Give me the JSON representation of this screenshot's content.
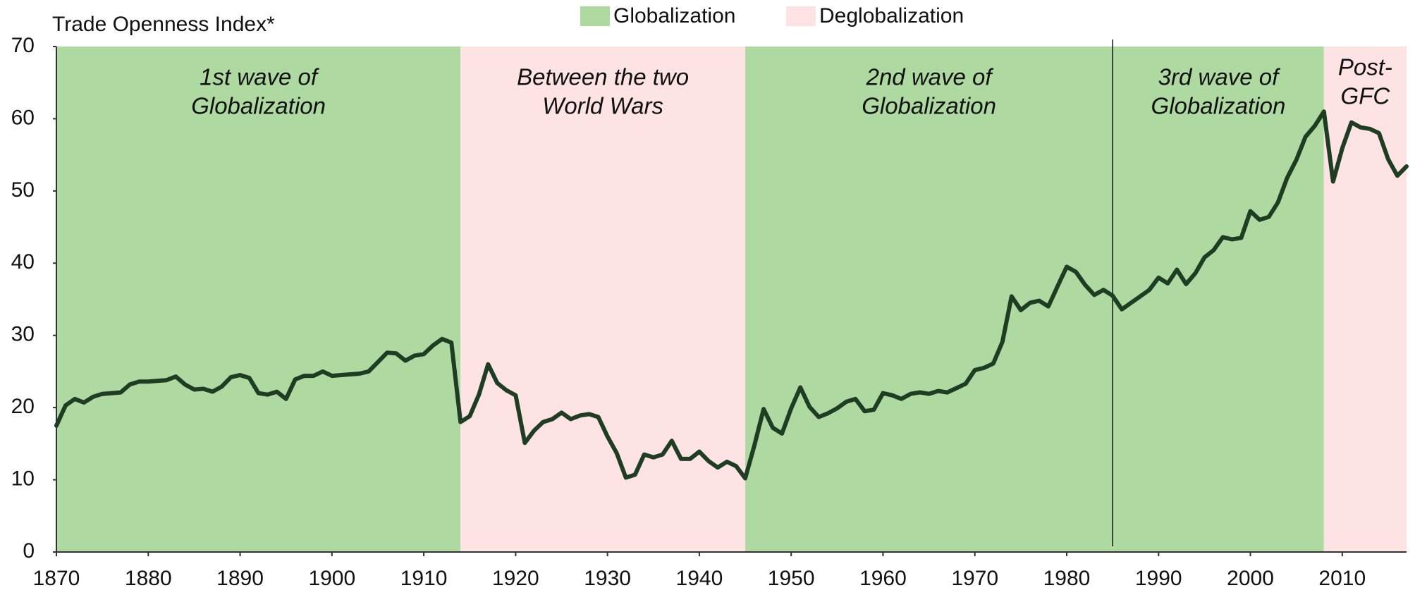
{
  "chart_data": {
    "type": "line",
    "title": "Trade Openness Index*",
    "legend": [
      {
        "name": "Globalization",
        "color": "#aed9a0"
      },
      {
        "name": "Deglobalization",
        "color": "#fde3e3"
      }
    ],
    "regions": [
      {
        "from": 1870,
        "to": 1914,
        "shade": 0,
        "label": [
          "1st wave of",
          "Globalization"
        ]
      },
      {
        "from": 1914,
        "to": 1945,
        "shade": 1,
        "label": [
          "Between the two",
          "World Wars"
        ]
      },
      {
        "from": 1945,
        "to": 1985,
        "shade": 0,
        "label": [
          "2nd wave of",
          "Globalization"
        ]
      },
      {
        "from": 1985,
        "to": 2008,
        "shade": 0,
        "label": [
          "3rd wave of",
          "Globalization"
        ]
      },
      {
        "from": 2008,
        "to": 2017,
        "shade": 1,
        "label": [
          "Post-",
          "GFC"
        ]
      }
    ],
    "x": [
      1870,
      1871,
      1872,
      1873,
      1874,
      1875,
      1876,
      1877,
      1878,
      1879,
      1880,
      1881,
      1882,
      1883,
      1884,
      1885,
      1886,
      1887,
      1888,
      1889,
      1890,
      1891,
      1892,
      1893,
      1894,
      1895,
      1896,
      1897,
      1898,
      1899,
      1900,
      1901,
      1902,
      1903,
      1904,
      1905,
      1906,
      1907,
      1908,
      1909,
      1910,
      1911,
      1912,
      1913,
      1914,
      1915,
      1916,
      1917,
      1918,
      1919,
      1920,
      1921,
      1922,
      1923,
      1924,
      1925,
      1926,
      1927,
      1928,
      1929,
      1930,
      1931,
      1932,
      1933,
      1934,
      1935,
      1936,
      1937,
      1938,
      1939,
      1940,
      1941,
      1942,
      1943,
      1944,
      1945,
      1946,
      1947,
      1948,
      1949,
      1950,
      1951,
      1952,
      1953,
      1954,
      1955,
      1956,
      1957,
      1958,
      1959,
      1960,
      1961,
      1962,
      1963,
      1964,
      1965,
      1966,
      1967,
      1968,
      1969,
      1970,
      1971,
      1972,
      1973,
      1974,
      1975,
      1976,
      1977,
      1978,
      1979,
      1980,
      1981,
      1982,
      1983,
      1984,
      1985,
      1986,
      1987,
      1988,
      1989,
      1990,
      1991,
      1992,
      1993,
      1994,
      1995,
      1996,
      1997,
      1998,
      1999,
      2000,
      2001,
      2002,
      2003,
      2004,
      2005,
      2006,
      2007,
      2008,
      2009,
      2010,
      2011,
      2012,
      2013,
      2014,
      2015,
      2016,
      2017
    ],
    "series": [
      {
        "name": "Trade Openness Index",
        "color": "#1e3d23",
        "values": [
          17.5,
          20.3,
          21.2,
          20.7,
          21.5,
          21.9,
          22.0,
          22.1,
          23.2,
          23.6,
          23.6,
          23.7,
          23.8,
          24.3,
          23.2,
          22.5,
          22.6,
          22.2,
          22.9,
          24.2,
          24.5,
          24.1,
          22.0,
          21.8,
          22.2,
          21.2,
          23.9,
          24.4,
          24.4,
          25.0,
          24.4,
          24.5,
          24.6,
          24.7,
          25.0,
          26.3,
          27.6,
          27.5,
          26.5,
          27.2,
          27.4,
          28.6,
          29.5,
          29.0,
          18.0,
          18.8,
          21.8,
          26.0,
          23.4,
          22.4,
          21.7,
          15.1,
          16.8,
          18.0,
          18.4,
          19.3,
          18.4,
          18.9,
          19.1,
          18.7,
          16.0,
          13.7,
          10.3,
          10.7,
          13.5,
          13.1,
          13.5,
          15.4,
          12.9,
          12.9,
          13.9,
          12.6,
          11.7,
          12.5,
          11.9,
          10.2,
          14.8,
          19.8,
          17.2,
          16.4,
          19.9,
          22.8,
          20.1,
          18.7,
          19.2,
          19.9,
          20.8,
          21.2,
          19.5,
          19.7,
          22.0,
          21.7,
          21.2,
          21.9,
          22.1,
          21.9,
          22.3,
          22.1,
          22.7,
          23.3,
          25.2,
          25.5,
          26.1,
          29.1,
          35.4,
          33.5,
          34.5,
          34.8,
          34.0,
          36.8,
          39.5,
          38.8,
          37.0,
          35.6,
          36.3,
          35.5,
          33.6,
          34.5,
          35.4,
          36.3,
          38.0,
          37.2,
          39.1,
          37.1,
          38.6,
          40.8,
          41.8,
          43.6,
          43.3,
          43.5,
          47.2,
          46.0,
          46.4,
          48.4,
          51.8,
          54.3,
          57.5,
          59.0,
          61.0,
          51.3,
          55.9,
          59.5,
          58.8,
          58.6,
          58.0,
          54.4,
          52.1,
          53.4
        ]
      }
    ],
    "xlim": [
      1870,
      2017
    ],
    "xticks": [
      1870,
      1880,
      1890,
      1900,
      1910,
      1920,
      1930,
      1940,
      1950,
      1960,
      1970,
      1980,
      1990,
      2000,
      2010
    ],
    "ylim": [
      0,
      70
    ],
    "yticks": [
      0,
      10,
      20,
      30,
      40,
      50,
      60,
      70
    ],
    "grid": false
  }
}
